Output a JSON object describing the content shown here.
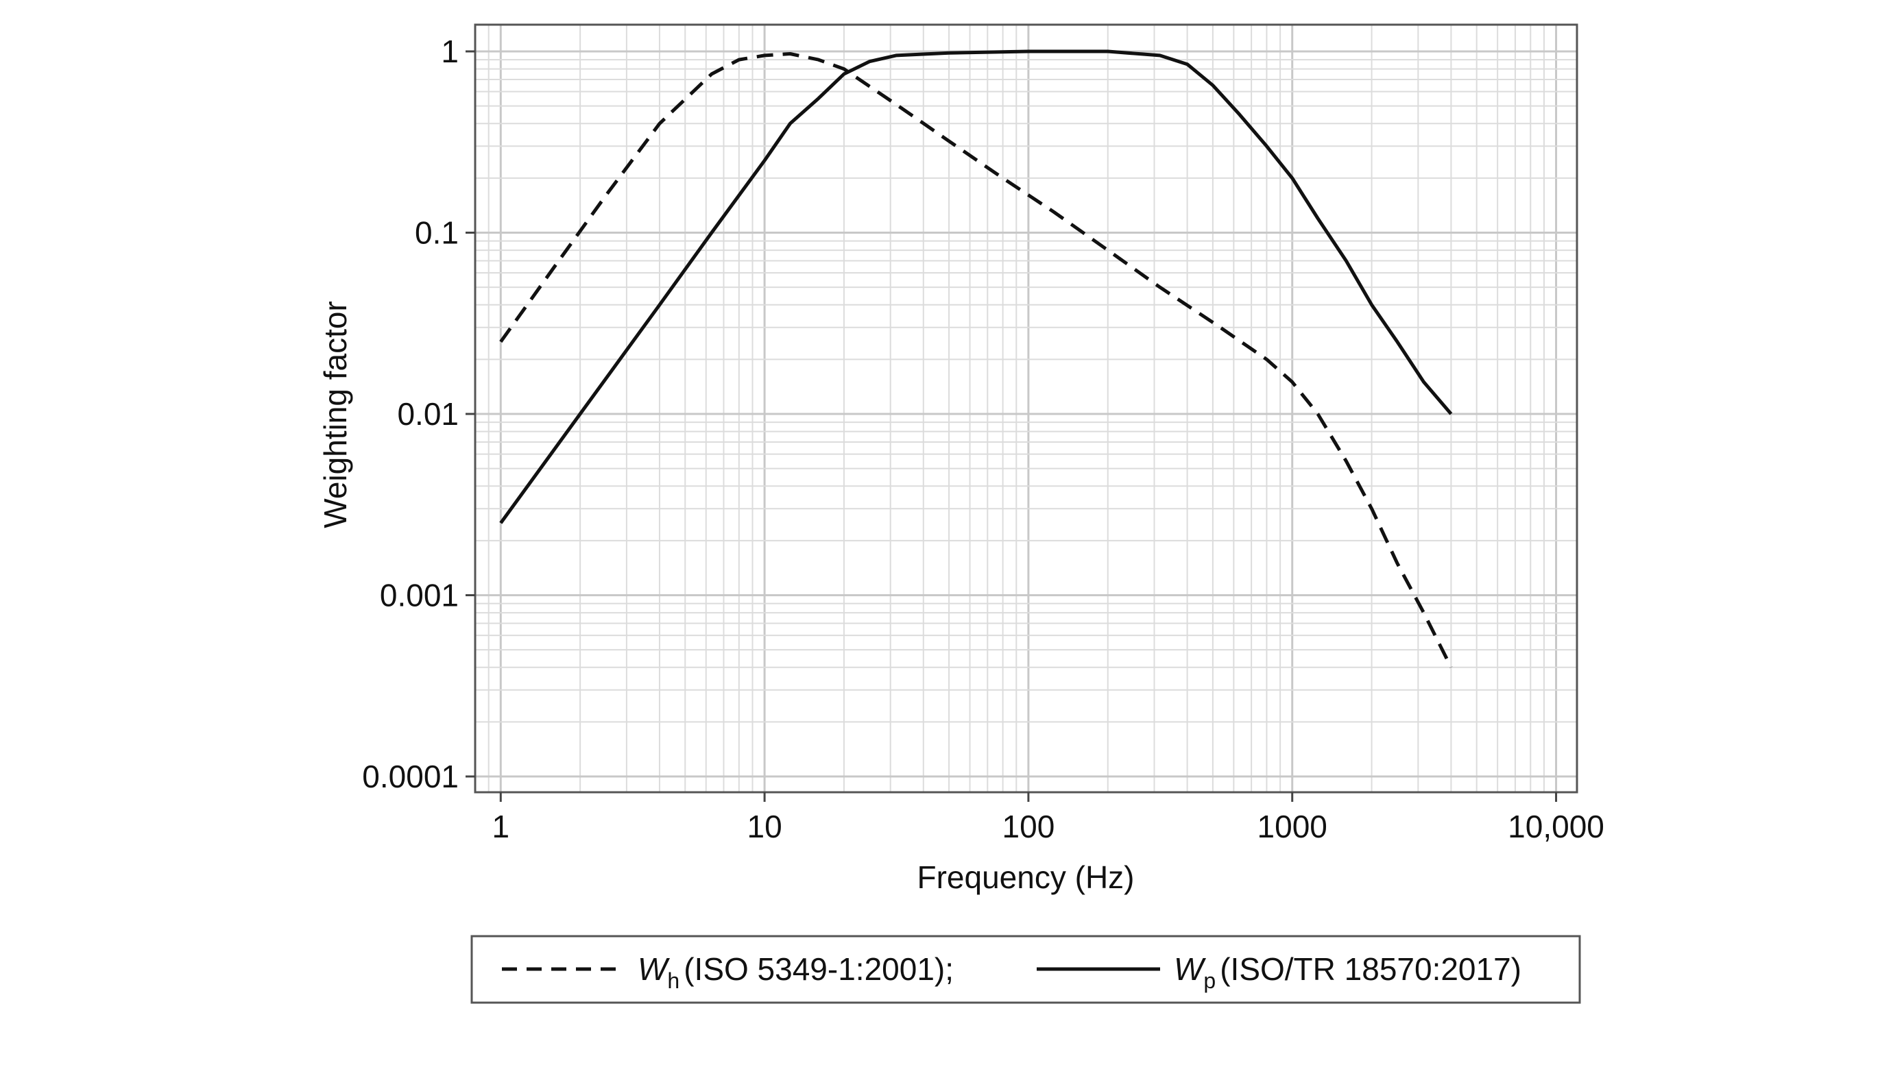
{
  "chart_data": {
    "type": "line",
    "xscale": "log",
    "yscale": "log",
    "xlabel": "Frequency (Hz)",
    "ylabel": "Weighting factor",
    "xlim": [
      0.8,
      12000
    ],
    "ylim": [
      0.0001,
      1
    ],
    "grid": true,
    "x_ticks": [
      1,
      10,
      100,
      1000,
      10000
    ],
    "x_tick_labels": [
      "1",
      "10",
      "100",
      "1000",
      "10,000"
    ],
    "y_ticks": [
      0.0001,
      0.001,
      0.01,
      0.1,
      1
    ],
    "y_tick_labels": [
      "0.0001",
      "0.001",
      "0.01",
      "0.1",
      "1"
    ],
    "legend_position": "bottom",
    "series": [
      {
        "name": "Wh",
        "symbol": "W",
        "subscript": "h",
        "label": "(ISO 5349-1:2001);",
        "style": "dashed",
        "color": "#111111",
        "x": [
          1,
          1.6,
          2.5,
          4,
          6.3,
          8,
          10,
          12.5,
          16,
          20,
          31.5,
          50,
          80,
          125,
          200,
          315,
          500,
          800,
          1000,
          1250,
          1600,
          2000,
          2500,
          3150,
          4000
        ],
        "values": [
          0.025,
          0.065,
          0.16,
          0.4,
          0.75,
          0.9,
          0.95,
          0.97,
          0.9,
          0.8,
          0.51,
          0.32,
          0.2,
          0.13,
          0.08,
          0.05,
          0.032,
          0.02,
          0.015,
          0.01,
          0.0055,
          0.003,
          0.0015,
          0.0008,
          0.0004
        ]
      },
      {
        "name": "Wp",
        "symbol": "W",
        "subscript": "p",
        "label": "(ISO/TR 18570:2017)",
        "style": "solid",
        "color": "#111111",
        "x": [
          1,
          2,
          4,
          6.3,
          10,
          12.5,
          16,
          20,
          25,
          31.5,
          50,
          100,
          200,
          315,
          400,
          500,
          630,
          800,
          1000,
          1250,
          1600,
          2000,
          2500,
          3150,
          4000
        ],
        "values": [
          0.0025,
          0.01,
          0.04,
          0.1,
          0.25,
          0.4,
          0.55,
          0.75,
          0.88,
          0.95,
          0.98,
          1.0,
          1.0,
          0.95,
          0.85,
          0.65,
          0.45,
          0.3,
          0.2,
          0.12,
          0.07,
          0.04,
          0.025,
          0.015,
          0.01
        ]
      }
    ]
  }
}
